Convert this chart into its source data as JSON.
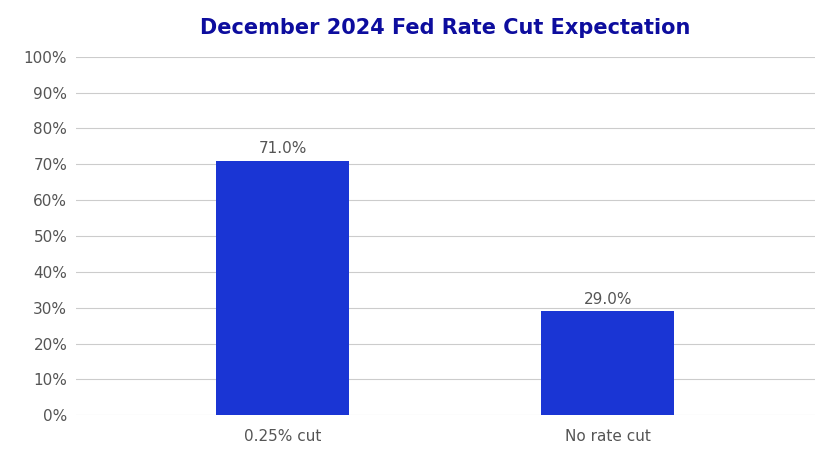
{
  "title": "December 2024 Fed Rate Cut Expectation",
  "title_color": "#0d0d9e",
  "title_fontsize": 15,
  "title_fontweight": "bold",
  "categories": [
    "0.25% cut",
    "No rate cut"
  ],
  "values": [
    71.0,
    29.0
  ],
  "bar_color": "#1a35d4",
  "bar_width": 0.18,
  "ylim": [
    0,
    100
  ],
  "yticks": [
    0,
    10,
    20,
    30,
    40,
    50,
    60,
    70,
    80,
    90,
    100
  ],
  "ytick_labels": [
    "0%",
    "10%",
    "20%",
    "30%",
    "40%",
    "50%",
    "60%",
    "70%",
    "80%",
    "90%",
    "100%"
  ],
  "tick_label_fontsize": 11,
  "tick_label_color": "#555555",
  "value_label_fontsize": 11,
  "value_label_color": "#555555",
  "grid_color": "#cccccc",
  "background_color": "#ffffff",
  "bar_positions": [
    0.28,
    0.72
  ],
  "xlim": [
    0.0,
    1.0
  ]
}
